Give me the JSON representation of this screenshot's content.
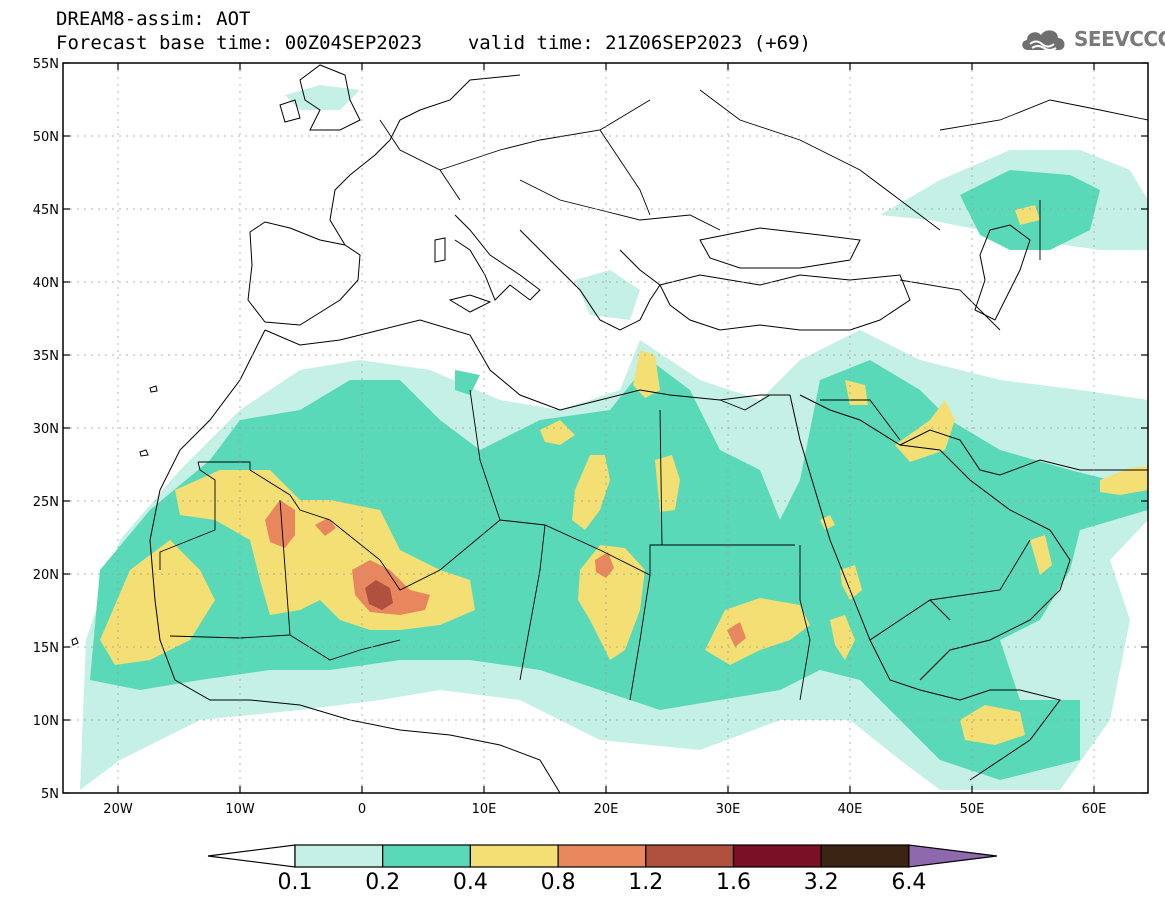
{
  "header": {
    "title_line1": "DREAM8-assim: AOT",
    "base_time_label": "Forecast base time: 00Z04SEP2023",
    "valid_time_label": "valid time: 21Z06SEP2023 (+69)"
  },
  "logo": {
    "text": "SEEVCCC",
    "icon": "cloud-logo-icon"
  },
  "map": {
    "lat_labels": [
      "55N",
      "50N",
      "45N",
      "40N",
      "35N",
      "30N",
      "25N",
      "20N",
      "15N",
      "10N",
      "5N"
    ],
    "lon_labels": [
      "20W",
      "10W",
      "0",
      "10E",
      "20E",
      "30E",
      "40E",
      "50E",
      "60E"
    ]
  },
  "colorbar": {
    "labels": [
      "0.1",
      "0.2",
      "0.4",
      "0.8",
      "1.2",
      "1.6",
      "3.2",
      "6.4"
    ],
    "colors": [
      "#c4f0e6",
      "#5ad9b8",
      "#f3df73",
      "#e8875e",
      "#b0503f",
      "#7a1024",
      "#3b2414",
      "#8e6aad"
    ]
  }
}
